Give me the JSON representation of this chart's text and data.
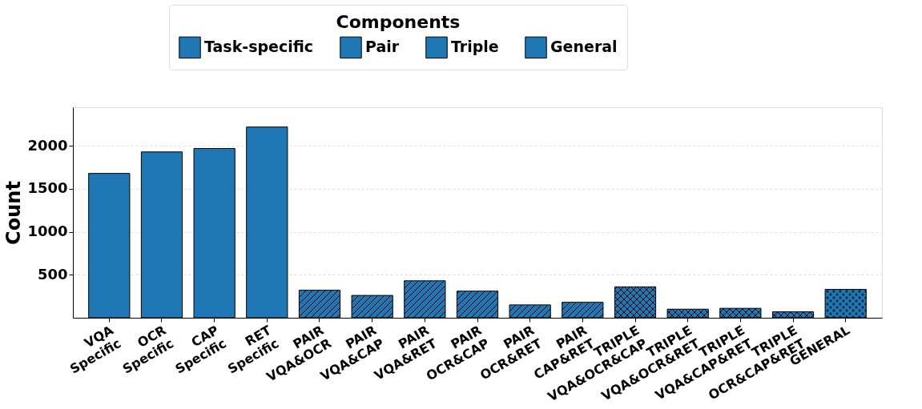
{
  "chart_data": {
    "type": "bar",
    "ylabel": "Count",
    "legend_title": "Components",
    "legend": "top",
    "categories": [
      "VQA\nSpecific",
      "OCR\nSpecific",
      "CAP\nSpecific",
      "RET\nSpecific",
      "PAIR\nVQA&OCR",
      "PAIR\nVQA&CAP",
      "PAIR\nVQA&RET",
      "PAIR\nOCR&CAP",
      "PAIR\nOCR&RET",
      "PAIR\nCAP&RET",
      "TRIPLE\nVQA&OCR&CAP",
      "TRIPLE\nVQA&OCR&RET",
      "TRIPLE\nVQA&CAP&RET",
      "TRIPLE\nOCR&CAP&RET",
      "GENERAL"
    ],
    "series": [
      {
        "name": "Task-specific",
        "color": "#1f77b4",
        "values": [
          1680,
          1930,
          1970,
          2220,
          null,
          null,
          null,
          null,
          null,
          null,
          null,
          null,
          null,
          null,
          null
        ]
      },
      {
        "name": "Pair",
        "color": "#1f77b4",
        "values": [
          null,
          null,
          null,
          null,
          320,
          260,
          430,
          310,
          150,
          180,
          null,
          null,
          null,
          null,
          null
        ]
      },
      {
        "name": "Triple",
        "color": "#1f77b4",
        "values": [
          null,
          null,
          null,
          null,
          null,
          null,
          null,
          null,
          null,
          null,
          360,
          100,
          110,
          70,
          null
        ]
      },
      {
        "name": "General",
        "color": "#1f77b4",
        "values": [
          null,
          null,
          null,
          null,
          null,
          null,
          null,
          null,
          null,
          null,
          null,
          null,
          null,
          null,
          330
        ]
      }
    ],
    "ylim": [
      0,
      2450
    ],
    "yticks": [
      500,
      1000,
      1500,
      2000
    ],
    "grid": "y"
  }
}
